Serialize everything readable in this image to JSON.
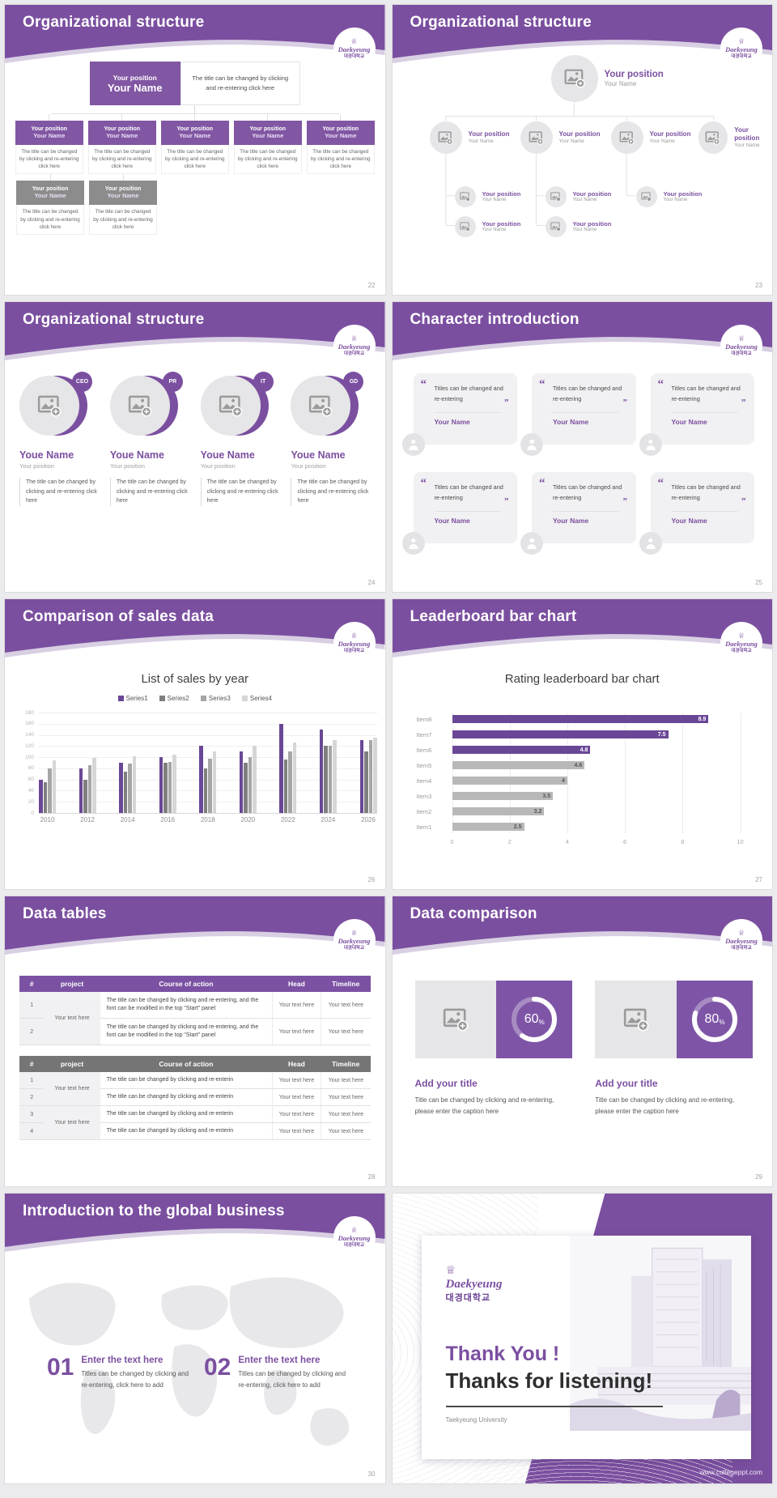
{
  "colors": {
    "accent": "#7b4fa0",
    "bar_purple": "#6a4796",
    "bar_gray": "#b8b8b8"
  },
  "global": {
    "logo": {
      "crown": "♕",
      "script": "Daekyeung",
      "korean": "대경대학교"
    },
    "icons": {
      "quote_open": "“",
      "quote_close": "”"
    }
  },
  "slides": {
    "org1": {
      "title": "Organizational structure",
      "page": "22",
      "node_position": "Your position",
      "node_name": "Your Name",
      "note": "The title can be changed by clicking and re-entering click here",
      "node_caption": "The title can be changed by clicking and re-entering click here"
    },
    "org2": {
      "title": "Organizational structure",
      "page": "23",
      "position": "Your position",
      "name": "Your Name"
    },
    "org3": {
      "title": "Organizational structure",
      "page": "24",
      "badges": [
        "CEO",
        "PR",
        "IT",
        "GD"
      ],
      "name": "Youe Name",
      "position": "Your position",
      "caption": "The title can be changed by clicking and re-entering click here"
    },
    "chars": {
      "title": "Character introduction",
      "page": "25",
      "card_text": "Titles can be changed and re-entering",
      "name": "Your Name"
    },
    "sales": {
      "title": "Comparison of sales data",
      "page": "26",
      "chart_data": {
        "type": "bar",
        "title": "List of sales by year",
        "categories": [
          "2010",
          "2012",
          "2014",
          "2016",
          "2018",
          "2020",
          "2022",
          "2024",
          "2026"
        ],
        "series": [
          {
            "name": "Series1",
            "color": "#6a4796",
            "values": [
              60,
              80,
              90,
              100,
              120,
              110,
              160,
              150,
              130
            ]
          },
          {
            "name": "Series2",
            "color": "#7f7f7f",
            "values": [
              55,
              60,
              74,
              90,
              80,
              90,
              96,
              120,
              110
            ]
          },
          {
            "name": "Series3",
            "color": "#a6a6a6",
            "values": [
              80,
              86,
              88,
              92,
              98,
              100,
              110,
              120,
              130
            ]
          },
          {
            "name": "Series4",
            "color": "#d6d6d6",
            "values": [
              95,
              99,
              102,
              105,
              110,
              120,
              126,
              130,
              135
            ]
          }
        ],
        "xlabel": "",
        "ylabel": "",
        "ylim": [
          0,
          180
        ],
        "ytick": 20,
        "legend_position": "top",
        "grid": true
      }
    },
    "leader": {
      "title": "Leaderboard bar chart",
      "page": "27",
      "chart_data": {
        "type": "bar-horizontal",
        "title": "Rating leaderboard bar chart",
        "categories": [
          "Item8",
          "Item7",
          "Item6",
          "Item5",
          "Item4",
          "Item3",
          "Item2",
          "Item1"
        ],
        "values": [
          8.9,
          7.5,
          4.8,
          4.6,
          4,
          3.5,
          3.2,
          2.5
        ],
        "colors": [
          "#6a4796",
          "#6a4796",
          "#6a4796",
          "#b8b8b8",
          "#b8b8b8",
          "#b8b8b8",
          "#b8b8b8",
          "#b8b8b8"
        ],
        "xlim": [
          0,
          10
        ],
        "xticks": [
          0,
          2,
          4,
          6,
          8,
          10
        ],
        "grid": true
      }
    },
    "tables": {
      "title": "Data tables",
      "page": "28",
      "headers": [
        "#",
        "project",
        "Course of action",
        "Head",
        "Timeline"
      ],
      "table1": {
        "rows": [
          "1",
          "2"
        ],
        "project": "Your text here",
        "course": "The title can be changed by clicking and re-entering, and the font can be modified in the top \"Start\" panel",
        "head": "Your text here",
        "timeline": "Your text here"
      },
      "table2": {
        "rows": [
          "1",
          "2",
          "3",
          "4"
        ],
        "project": "Your text here",
        "course": "The title can be changed by clicking and re-enterin",
        "head": "Your text here",
        "timeline": "Your text here"
      }
    },
    "compare": {
      "title": "Data comparison",
      "page": "29",
      "items": [
        {
          "percent": "60"
        },
        {
          "percent": "80"
        }
      ],
      "percent_suffix": "%",
      "item_title": "Add your title",
      "caption": "Title can be changed by clicking and re-entering, please enter the caption here"
    },
    "globalbiz": {
      "title": "Introduction to the global business",
      "page": "30",
      "items": [
        {
          "num": "01"
        },
        {
          "num": "02"
        }
      ],
      "item_title": "Enter the text here",
      "caption": "Titles can be changed by clicking and re-entering, click here to add"
    },
    "thanks": {
      "heading_purple": "Thank You !",
      "heading_dark": "Thanks for listening!",
      "subtitle": "Taekyeung University",
      "url": "www.collegeppt.com"
    }
  }
}
